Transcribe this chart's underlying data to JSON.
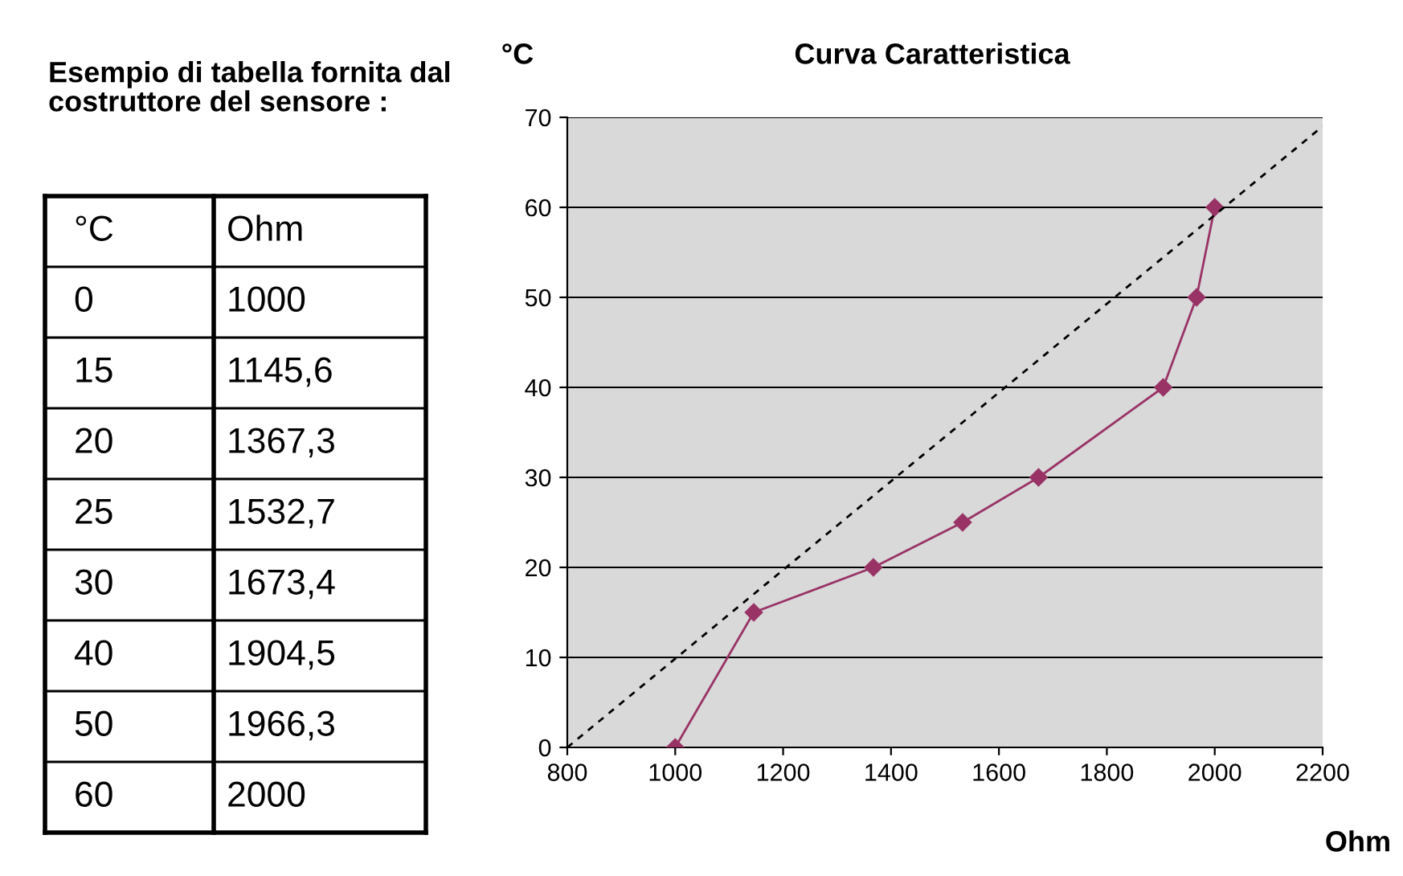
{
  "chart_data": [
    {
      "type": "other",
      "title": "Esempio di tabella fornita dal costruttore del sensore :",
      "categories": [
        "°C",
        "Ohm"
      ],
      "annotations": [
        "0",
        "1000",
        "15",
        "1145,6",
        "20",
        "1367,3",
        "25",
        "1532,7",
        "30",
        "1673,4",
        "40",
        "1904,5",
        "50",
        "1966,3",
        "60",
        "2000"
      ]
    },
    {
      "type": "line",
      "title": "Curva Caratteristica",
      "xlabel": "Ohm",
      "ylabel": "°C",
      "series": [
        {
          "color": "#993366",
          "marker": "diamond",
          "line_style": "solid",
          "x": [
            1000,
            1145.6,
            1367.3,
            1532.7,
            1673.4,
            1904.5,
            1966.3,
            2000
          ],
          "values": [
            0,
            15,
            20,
            25,
            30,
            40,
            50,
            60
          ]
        },
        {
          "color": "#000000",
          "marker": "none",
          "line_style": "dashed",
          "x": [
            800,
            2200
          ],
          "values": [
            0,
            69
          ]
        }
      ],
      "xlim": [
        800,
        2200
      ],
      "xticks": [
        800,
        1000,
        1200,
        1400,
        1600,
        1800,
        2000,
        2200
      ],
      "ylim": [
        0,
        70
      ],
      "yticks": [
        0,
        10,
        20,
        30,
        40,
        50,
        60,
        70
      ],
      "grid": "y",
      "legend": false
    }
  ]
}
